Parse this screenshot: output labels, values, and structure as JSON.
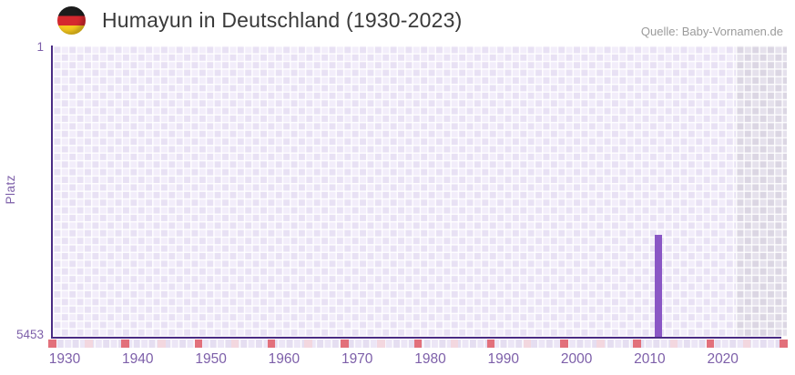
{
  "header": {
    "flag_icon": "germany-flag-roundel",
    "title": "Humayun in Deutschland (1930-2023)",
    "source": "Quelle: Baby-Vornamen.de"
  },
  "chart_data": {
    "type": "bar",
    "title": "Humayun in Deutschland (1930-2023)",
    "xlabel": "",
    "ylabel": "Platz",
    "data_period": [
      1930,
      2023
    ],
    "x_domain": [
      1930,
      2030
    ],
    "x_ticks": [
      "1930",
      "1940",
      "1950",
      "1960",
      "1970",
      "1980",
      "1990",
      "2000",
      "2010",
      "2020"
    ],
    "y_axis": {
      "inverted": true,
      "min": 1,
      "max": 5453,
      "top_tick": "1",
      "bottom_tick": "5453"
    },
    "series": [
      {
        "name": "Humayun",
        "color": "#8a57c5",
        "points": [
          {
            "year": 2013,
            "rank": 3540
          }
        ]
      }
    ],
    "no_data_years": {
      "from": 2024,
      "to": 2030
    },
    "axis_marker_years": {
      "decades": [
        1930,
        1940,
        1950,
        1960,
        1970,
        1980,
        1990,
        2000,
        2010,
        2020,
        2030
      ],
      "half_decades": [
        1935,
        1945,
        1955,
        1965,
        1975,
        1985,
        1995,
        2005,
        2015,
        2025
      ]
    },
    "legend": "none",
    "grid": "checkered-lavender"
  },
  "colors": {
    "bar": "#8a57c5",
    "axis_line": "#4a2b84",
    "tick_label": "#7d5fa9",
    "cell_light": "#f2edfa",
    "cell_dark": "#e8e1f4",
    "cell_nodata_light": "#e5e1ec",
    "cell_nodata_dark": "#dbd6e3",
    "decade_marker": "#e2707b",
    "half_decade_marker": "#f3d7df",
    "title_text": "#3a3a3a",
    "source_text": "#9b9b9b",
    "flag_black": "#1c1c1c",
    "flag_red": "#d5282e",
    "flag_gold": "#f6c91e"
  }
}
